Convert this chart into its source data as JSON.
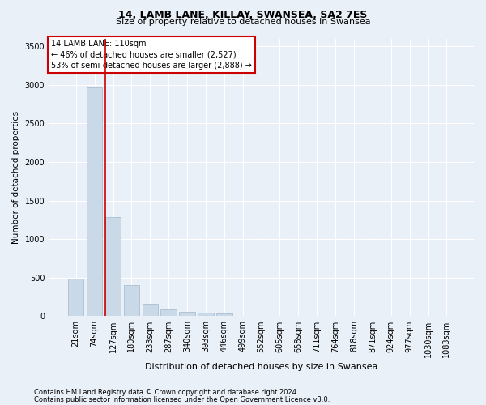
{
  "title1": "14, LAMB LANE, KILLAY, SWANSEA, SA2 7ES",
  "title2": "Size of property relative to detached houses in Swansea",
  "xlabel": "Distribution of detached houses by size in Swansea",
  "ylabel": "Number of detached properties",
  "footnote1": "Contains HM Land Registry data © Crown copyright and database right 2024.",
  "footnote2": "Contains public sector information licensed under the Open Government Licence v3.0.",
  "annotation_line1": "14 LAMB LANE: 110sqm",
  "annotation_line2": "← 46% of detached houses are smaller (2,527)",
  "annotation_line3": "53% of semi-detached houses are larger (2,888) →",
  "bar_color": "#c9d9e8",
  "bar_edge_color": "#a0b8cc",
  "vline_color": "#cc0000",
  "vline_x_index": 1.57,
  "categories": [
    "21sqm",
    "74sqm",
    "127sqm",
    "180sqm",
    "233sqm",
    "287sqm",
    "340sqm",
    "393sqm",
    "446sqm",
    "499sqm",
    "552sqm",
    "605sqm",
    "658sqm",
    "711sqm",
    "764sqm",
    "818sqm",
    "871sqm",
    "924sqm",
    "977sqm",
    "1030sqm",
    "1083sqm"
  ],
  "values": [
    490,
    2960,
    1290,
    400,
    165,
    85,
    55,
    45,
    40,
    0,
    0,
    0,
    0,
    0,
    0,
    0,
    0,
    0,
    0,
    0,
    0
  ],
  "ylim": [
    0,
    3600
  ],
  "yticks": [
    0,
    500,
    1000,
    1500,
    2000,
    2500,
    3000,
    3500
  ],
  "bg_color": "#eaf0f8",
  "plot_bg_color": "#eaf0f8",
  "grid_color": "#ffffff",
  "title1_fontsize": 9,
  "title2_fontsize": 8,
  "ylabel_fontsize": 7.5,
  "xlabel_fontsize": 8,
  "tick_fontsize": 7,
  "annotation_fontsize": 7,
  "footnote_fontsize": 6
}
